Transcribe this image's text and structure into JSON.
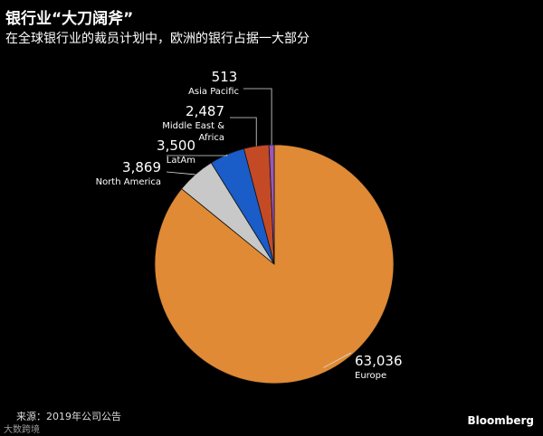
{
  "header": {
    "title": "银行业“大刀阔斧”",
    "subtitle": "在全球银行业的裁员计划中，欧洲的银行占据一大部分"
  },
  "footer": {
    "source": "来源：2019年公司公告",
    "brand": "Bloomberg",
    "watermark": "大数跨境"
  },
  "chart_data": {
    "type": "pie",
    "title": "银行业“大刀阔斧”",
    "subtitle": "在全球银行业的裁员计划中，欧洲的银行占据一大部分",
    "start_angle_deg": 0,
    "direction": "clockwise",
    "slices": [
      {
        "label": "Europe",
        "value": 63036,
        "value_label": "63,036",
        "color": "#e08a35"
      },
      {
        "label": "North America",
        "value": 3869,
        "value_label": "3,869",
        "color": "#c8c8c8"
      },
      {
        "label": "LatAm",
        "value": 3500,
        "value_label": "3,500",
        "color": "#1a5cc8"
      },
      {
        "label": "Middle East & Africa",
        "value": 2487,
        "value_label": "2,487",
        "color": "#c44a26"
      },
      {
        "label": "Asia Pacific",
        "value": 513,
        "value_label": "513",
        "color": "#9a56b8"
      }
    ]
  }
}
